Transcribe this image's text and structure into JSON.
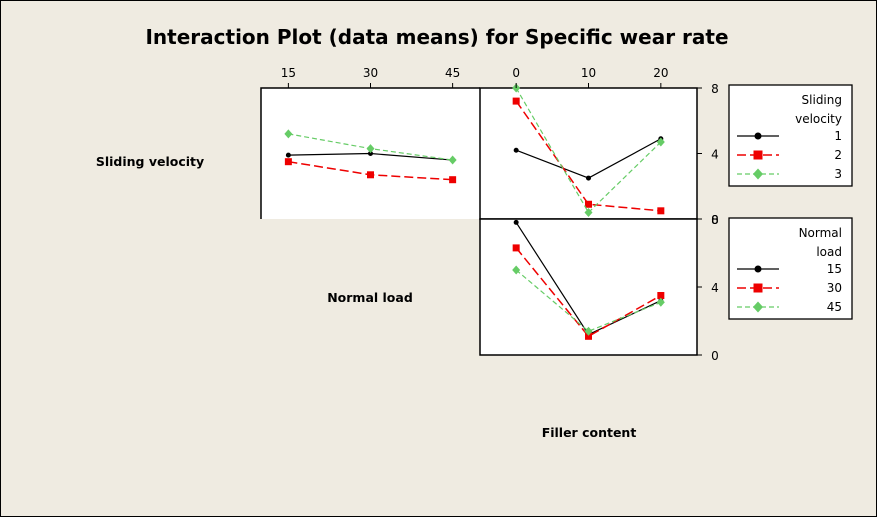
{
  "chart_data": {
    "type": "line",
    "title": "Interaction Plot (data means) for Specific wear rate",
    "row_labels": [
      "Sliding velocity",
      "Normal load"
    ],
    "column_label": "Filler content",
    "factors": {
      "sliding_velocity": {
        "levels": [
          1,
          2,
          3
        ],
        "level_labels": [
          "1",
          "2",
          "3"
        ]
      },
      "normal_load": {
        "levels": [
          15,
          30,
          45
        ],
        "level_labels": [
          "15",
          "30",
          "45"
        ]
      },
      "filler_content": {
        "levels": [
          0,
          10,
          20
        ],
        "level_labels": [
          "0",
          "10",
          "20"
        ]
      }
    },
    "y_ticks": [
      "0",
      "4",
      "8"
    ],
    "ylim": [
      0,
      8
    ],
    "series_colors": [
      "#000000",
      "#ee0000",
      "#66cc66"
    ],
    "panels": [
      {
        "id": "load-by-velocity",
        "x": [
          15,
          30,
          45
        ],
        "series": [
          {
            "values": [
              3.9,
              4.0,
              3.6
            ]
          },
          {
            "values": [
              3.5,
              2.7,
              2.4
            ]
          },
          {
            "values": [
              5.2,
              4.3,
              3.6
            ]
          }
        ]
      },
      {
        "id": "filler-by-velocity",
        "x": [
          0,
          10,
          20
        ],
        "series": [
          {
            "values": [
              4.2,
              2.5,
              4.9
            ]
          },
          {
            "values": [
              7.2,
              0.9,
              0.5
            ]
          },
          {
            "values": [
              8.0,
              0.4,
              4.7
            ]
          }
        ]
      },
      {
        "id": "filler-by-load",
        "x": [
          0,
          10,
          20
        ],
        "series": [
          {
            "values": [
              7.8,
              1.2,
              3.2
            ]
          },
          {
            "values": [
              6.3,
              1.1,
              3.5
            ]
          },
          {
            "values": [
              5.0,
              1.4,
              3.1
            ]
          }
        ]
      }
    ],
    "legends": [
      {
        "title_lines": [
          "Sliding",
          "velocity"
        ],
        "entries": [
          "1",
          "2",
          "3"
        ]
      },
      {
        "title_lines": [
          "Normal",
          "load"
        ],
        "entries": [
          "15",
          "30",
          "45"
        ]
      }
    ]
  }
}
